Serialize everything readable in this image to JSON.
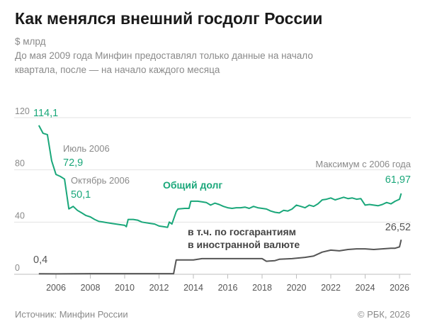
{
  "title": "Как менялся внешний госдолг России",
  "unit": "$ млрд",
  "subtitle_lines": [
    "До мая 2009 года Минфин предоставлял только данные на начало",
    "квартала, после — на начало каждого месяца"
  ],
  "source": "Источник: Минфин России",
  "copyright": "© РБК, 2026",
  "colors": {
    "total": "#1aa77a",
    "guarantees": "#555555",
    "grid": "#e3e3e3"
  },
  "chart_data": {
    "type": "line",
    "title": "Как менялся внешний госдолг России",
    "xlabel": "",
    "ylabel": "$ млрд",
    "xlim": [
      2005,
      2026.2
    ],
    "ylim": [
      0,
      130
    ],
    "yticks": [
      0,
      40,
      80,
      120
    ],
    "xticks": [
      2006,
      2008,
      2010,
      2012,
      2014,
      2016,
      2018,
      2020,
      2022,
      2024,
      2026
    ],
    "grid": true,
    "series": [
      {
        "name": "Общий долг",
        "points": [
          [
            2005.0,
            114.1
          ],
          [
            2005.25,
            108
          ],
          [
            2005.5,
            107
          ],
          [
            2005.75,
            87
          ],
          [
            2006.0,
            76.5
          ],
          [
            2006.25,
            75
          ],
          [
            2006.5,
            72.9
          ],
          [
            2006.75,
            50.1
          ],
          [
            2007.0,
            52
          ],
          [
            2007.25,
            49
          ],
          [
            2007.5,
            47
          ],
          [
            2007.75,
            45
          ],
          [
            2008.0,
            44
          ],
          [
            2008.25,
            42
          ],
          [
            2008.5,
            40.5
          ],
          [
            2008.75,
            40
          ],
          [
            2009.0,
            39.5
          ],
          [
            2009.25,
            39
          ],
          [
            2009.5,
            38.5
          ],
          [
            2009.75,
            38
          ],
          [
            2010.0,
            37.5
          ],
          [
            2010.1,
            36.5
          ],
          [
            2010.2,
            42
          ],
          [
            2010.5,
            42
          ],
          [
            2010.75,
            41.5
          ],
          [
            2011.0,
            40
          ],
          [
            2011.25,
            39.5
          ],
          [
            2011.5,
            39
          ],
          [
            2011.75,
            38.5
          ],
          [
            2012.0,
            37
          ],
          [
            2012.25,
            36.5
          ],
          [
            2012.5,
            36
          ],
          [
            2012.6,
            40
          ],
          [
            2012.75,
            38.5
          ],
          [
            2013.0,
            48
          ],
          [
            2013.1,
            50
          ],
          [
            2013.5,
            50.5
          ],
          [
            2013.75,
            50.5
          ],
          [
            2013.85,
            56
          ],
          [
            2014.25,
            56
          ],
          [
            2014.5,
            55.5
          ],
          [
            2014.75,
            55
          ],
          [
            2015.0,
            53
          ],
          [
            2015.25,
            54.5
          ],
          [
            2015.5,
            53.5
          ],
          [
            2015.75,
            52
          ],
          [
            2016.0,
            51
          ],
          [
            2016.25,
            50.5
          ],
          [
            2016.5,
            51
          ],
          [
            2016.75,
            51
          ],
          [
            2017.0,
            51.5
          ],
          [
            2017.25,
            50.5
          ],
          [
            2017.5,
            52
          ],
          [
            2017.75,
            51
          ],
          [
            2018.0,
            50.5
          ],
          [
            2018.25,
            50
          ],
          [
            2018.5,
            48.5
          ],
          [
            2018.75,
            47.5
          ],
          [
            2019.0,
            47
          ],
          [
            2019.25,
            49
          ],
          [
            2019.5,
            48.5
          ],
          [
            2019.75,
            50
          ],
          [
            2020.0,
            53
          ],
          [
            2020.25,
            52
          ],
          [
            2020.5,
            51
          ],
          [
            2020.75,
            53
          ],
          [
            2021.0,
            52
          ],
          [
            2021.25,
            54
          ],
          [
            2021.5,
            57
          ],
          [
            2021.75,
            57.5
          ],
          [
            2022.0,
            58.5
          ],
          [
            2022.25,
            57
          ],
          [
            2022.5,
            58
          ],
          [
            2022.75,
            59
          ],
          [
            2023.0,
            58
          ],
          [
            2023.25,
            58.5
          ],
          [
            2023.5,
            57.5
          ],
          [
            2023.75,
            58
          ],
          [
            2024.0,
            53
          ],
          [
            2024.25,
            53.5
          ],
          [
            2024.5,
            53
          ],
          [
            2024.75,
            52.5
          ],
          [
            2025.0,
            53.5
          ],
          [
            2025.25,
            55
          ],
          [
            2025.5,
            54
          ],
          [
            2025.75,
            56
          ],
          [
            2026.0,
            57.5
          ],
          [
            2026.1,
            61.97
          ]
        ]
      },
      {
        "name": "в т.ч. по госгарантиям в иностранной валюте",
        "points": [
          [
            2005.0,
            0.4
          ],
          [
            2006.0,
            0.3
          ],
          [
            2008.0,
            0.5
          ],
          [
            2010.0,
            0.5
          ],
          [
            2012.0,
            0.5
          ],
          [
            2012.85,
            0.5
          ],
          [
            2013.0,
            11
          ],
          [
            2014.0,
            11
          ],
          [
            2014.5,
            12
          ],
          [
            2015.5,
            12
          ],
          [
            2016.5,
            12
          ],
          [
            2017.5,
            12
          ],
          [
            2018.0,
            12
          ],
          [
            2018.25,
            10
          ],
          [
            2018.75,
            10.5
          ],
          [
            2019.0,
            11.5
          ],
          [
            2019.75,
            12
          ],
          [
            2020.5,
            13
          ],
          [
            2021.0,
            14
          ],
          [
            2021.5,
            17
          ],
          [
            2022.0,
            18.5
          ],
          [
            2022.5,
            18
          ],
          [
            2023.0,
            19
          ],
          [
            2023.5,
            19.5
          ],
          [
            2024.0,
            19.5
          ],
          [
            2024.5,
            19
          ],
          [
            2025.0,
            19.5
          ],
          [
            2025.5,
            20
          ],
          [
            2025.75,
            20
          ],
          [
            2026.0,
            21
          ],
          [
            2026.1,
            26.52
          ]
        ]
      }
    ],
    "annotations": {
      "start_total": "114,1",
      "start_guarantees": "0,4",
      "jul2006_label": "Июль 2006",
      "jul2006_value": "72,9",
      "oct2006_label": "Октябрь 2006",
      "oct2006_value": "50,1",
      "total_name": "Общий долг",
      "max_label": "Максимум с 2006 года",
      "end_total": "61,97",
      "end_guarantees": "26,52",
      "guarantees_name_line1": "в т.ч. по госгарантиям",
      "guarantees_name_line2": "в иностранной валюте"
    }
  }
}
